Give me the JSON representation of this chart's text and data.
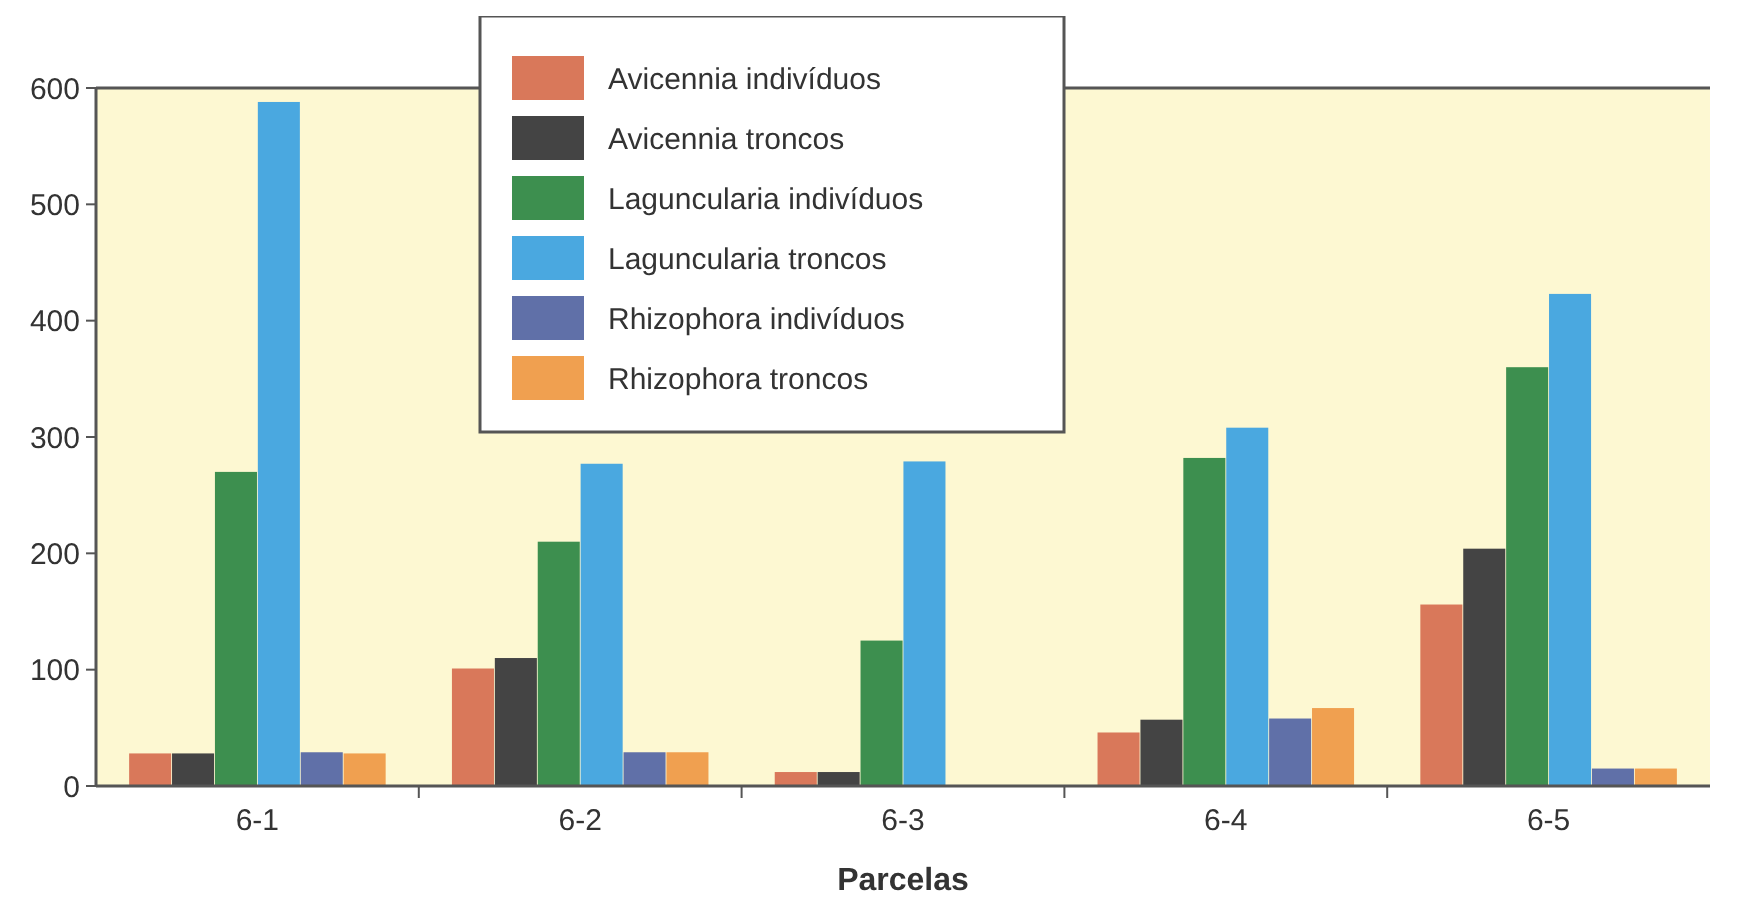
{
  "chart_data": {
    "type": "bar",
    "xlabel": "Parcelas",
    "categories": [
      "6-1",
      "6-2",
      "6-3",
      "6-4",
      "6-5"
    ],
    "series": [
      {
        "name": "Avicennia indivíduos",
        "color": "#d9785a",
        "values": [
          28,
          101,
          12,
          46,
          156
        ]
      },
      {
        "name": "Avicennia troncos",
        "color": "#444444",
        "values": [
          28,
          110,
          12,
          57,
          204
        ]
      },
      {
        "name": "Laguncularia indivíduos",
        "color": "#3d8f4f",
        "values": [
          270,
          210,
          125,
          282,
          360
        ]
      },
      {
        "name": "Laguncularia troncos",
        "color": "#4aa8e0",
        "values": [
          588,
          277,
          279,
          308,
          423
        ]
      },
      {
        "name": "Rhizophora indivíduos",
        "color": "#6070a8",
        "values": [
          29,
          29,
          0,
          58,
          15
        ]
      },
      {
        "name": "Rhizophora troncos",
        "color": "#f0a050",
        "values": [
          28,
          29,
          0,
          67,
          15
        ]
      }
    ],
    "ylim": [
      0,
      600
    ],
    "yticks": [
      0,
      100,
      200,
      300,
      400,
      500,
      600
    ],
    "grid": false,
    "legend": "top"
  }
}
